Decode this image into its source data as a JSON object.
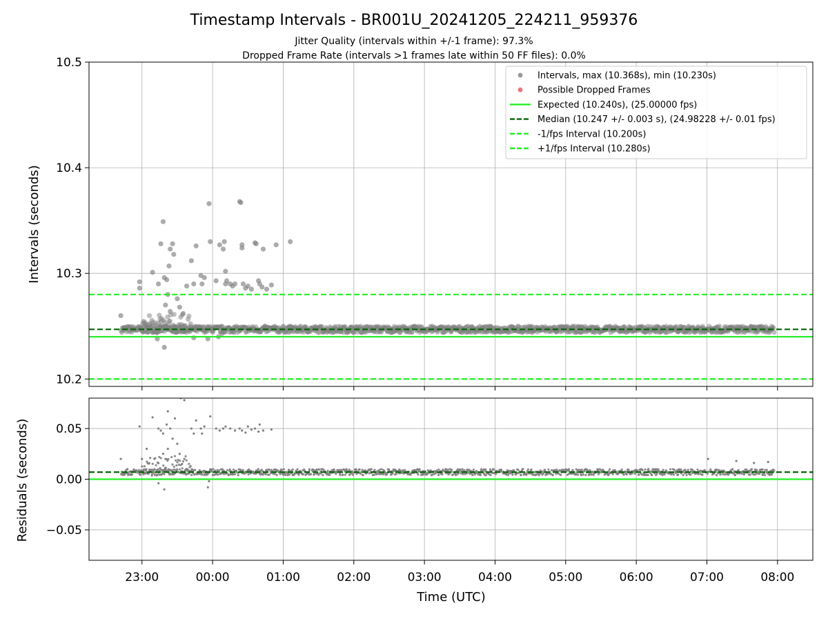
{
  "title": "Timestamp Intervals - BR001U_20241205_224211_959376",
  "subtitle_1": "Jitter Quality (intervals within +/-1 frame): 97.3%",
  "subtitle_2": "Dropped Frame Rate (intervals >1 frames late within 50 FF files): 0.0%",
  "colors": {
    "scatter": "#808080",
    "dropped": "#e8525a",
    "expected": "#22ee22",
    "median": "#006400",
    "interval": "#22ee22"
  },
  "chart_data": [
    {
      "type": "scatter",
      "panel": "intervals",
      "ylabel": "Intervals (seconds)",
      "ylim": [
        10.193,
        10.5
      ],
      "yticks": [
        10.2,
        10.3,
        10.4,
        10.5
      ],
      "ytick_labels": [
        "10.2",
        "10.3",
        "10.4",
        "10.5"
      ],
      "xlim": [
        "22:15",
        "08:30"
      ],
      "grid": true,
      "legend_position": "upper right",
      "legend": [
        {
          "label": "Intervals, max (10.368s), min (10.230s)",
          "kind": "marker",
          "color": "#808080"
        },
        {
          "label": "Possible Dropped Frames",
          "kind": "marker",
          "color": "#e8525a"
        },
        {
          "label": "Expected (10.240s), (25.00000 fps)",
          "kind": "solid",
          "color": "#22ee22"
        },
        {
          "label": "Median (10.247 +/- 0.003 s), (24.98228 +/- 0.01 fps)",
          "kind": "dashed",
          "color": "#006400"
        },
        {
          "label": "-1/fps Interval (10.200s)",
          "kind": "dashed",
          "color": "#22ee22"
        },
        {
          "label": "+1/fps Interval (10.280s)",
          "kind": "dashed",
          "color": "#22ee22"
        }
      ],
      "reference_lines": {
        "expected": 10.24,
        "median": 10.247,
        "minus_interval": 10.2,
        "plus_interval": 10.28
      },
      "baseline_band": {
        "x_start": "22:42",
        "x_end": "07:57",
        "center": 10.247,
        "spread": 0.003
      },
      "scatter_points": [
        {
          "x": "22:42",
          "y": 10.26
        },
        {
          "x": "22:58",
          "y": 10.292
        },
        {
          "x": "22:58",
          "y": 10.286
        },
        {
          "x": "23:09",
          "y": 10.301
        },
        {
          "x": "23:14",
          "y": 10.29
        },
        {
          "x": "23:16",
          "y": 10.328
        },
        {
          "x": "23:18",
          "y": 10.349
        },
        {
          "x": "23:19",
          "y": 10.296
        },
        {
          "x": "23:21",
          "y": 10.294
        },
        {
          "x": "23:23",
          "y": 10.307
        },
        {
          "x": "23:24",
          "y": 10.323
        },
        {
          "x": "23:26",
          "y": 10.328
        },
        {
          "x": "23:27",
          "y": 10.318
        },
        {
          "x": "23:20",
          "y": 10.27
        },
        {
          "x": "23:22",
          "y": 10.28
        },
        {
          "x": "23:24",
          "y": 10.264
        },
        {
          "x": "23:13",
          "y": 10.238
        },
        {
          "x": "23:19",
          "y": 10.23
        },
        {
          "x": "23:30",
          "y": 10.276
        },
        {
          "x": "23:32",
          "y": 10.268
        },
        {
          "x": "23:35",
          "y": 10.262
        },
        {
          "x": "23:38",
          "y": 10.288
        },
        {
          "x": "23:42",
          "y": 10.312
        },
        {
          "x": "23:44",
          "y": 10.29
        },
        {
          "x": "23:46",
          "y": 10.326
        },
        {
          "x": "23:50",
          "y": 10.298
        },
        {
          "x": "23:51",
          "y": 10.29
        },
        {
          "x": "23:53",
          "y": 10.296
        },
        {
          "x": "23:44",
          "y": 10.239
        },
        {
          "x": "23:56",
          "y": 10.238
        },
        {
          "x": "23:57",
          "y": 10.366
        },
        {
          "x": "23:58",
          "y": 10.33
        },
        {
          "x": "00:03",
          "y": 10.293
        },
        {
          "x": "00:06",
          "y": 10.327
        },
        {
          "x": "00:09",
          "y": 10.323
        },
        {
          "x": "00:10",
          "y": 10.33
        },
        {
          "x": "00:11",
          "y": 10.302
        },
        {
          "x": "00:11",
          "y": 10.29
        },
        {
          "x": "00:12",
          "y": 10.293
        },
        {
          "x": "00:15",
          "y": 10.29
        },
        {
          "x": "00:17",
          "y": 10.288
        },
        {
          "x": "00:19",
          "y": 10.29
        },
        {
          "x": "00:23",
          "y": 10.368
        },
        {
          "x": "00:24",
          "y": 10.367
        },
        {
          "x": "00:25",
          "y": 10.327
        },
        {
          "x": "00:25",
          "y": 10.324
        },
        {
          "x": "00:26",
          "y": 10.29
        },
        {
          "x": "00:28",
          "y": 10.286
        },
        {
          "x": "00:30",
          "y": 10.288
        },
        {
          "x": "00:33",
          "y": 10.285
        },
        {
          "x": "00:36",
          "y": 10.329
        },
        {
          "x": "00:37",
          "y": 10.328
        },
        {
          "x": "00:39",
          "y": 10.293
        },
        {
          "x": "00:40",
          "y": 10.29
        },
        {
          "x": "00:42",
          "y": 10.287
        },
        {
          "x": "00:43",
          "y": 10.323
        },
        {
          "x": "00:46",
          "y": 10.285
        },
        {
          "x": "00:50",
          "y": 10.289
        },
        {
          "x": "00:54",
          "y": 10.327
        },
        {
          "x": "01:06",
          "y": 10.33
        },
        {
          "x": "00:08",
          "y": 10.243
        },
        {
          "x": "00:05",
          "y": 10.24
        }
      ]
    },
    {
      "type": "scatter",
      "panel": "residuals",
      "ylabel": "Residuals (seconds)",
      "xlabel": "Time (UTC)",
      "ylim": [
        -0.08,
        0.08
      ],
      "yticks": [
        -0.05,
        0.0,
        0.05
      ],
      "ytick_labels": [
        "−0.05",
        "0.00",
        "0.05"
      ],
      "xlim": [
        "22:15",
        "08:30"
      ],
      "xticks": [
        "23:00",
        "00:00",
        "01:00",
        "02:00",
        "03:00",
        "04:00",
        "05:00",
        "06:00",
        "07:00",
        "08:00"
      ],
      "grid": true,
      "reference_lines": {
        "zero": 0.0,
        "median_offset": 0.007
      },
      "baseline_band": {
        "x_start": "22:42",
        "x_end": "07:57",
        "center": 0.007,
        "spread": 0.003
      },
      "scatter_points": [
        {
          "x": "22:42",
          "y": 0.02
        },
        {
          "x": "22:58",
          "y": 0.052
        },
        {
          "x": "23:00",
          "y": 0.02
        },
        {
          "x": "23:04",
          "y": 0.03
        },
        {
          "x": "23:09",
          "y": 0.061
        },
        {
          "x": "23:14",
          "y": 0.05
        },
        {
          "x": "23:16",
          "y": 0.048
        },
        {
          "x": "23:18",
          "y": 0.045
        },
        {
          "x": "23:21",
          "y": 0.054
        },
        {
          "x": "23:22",
          "y": 0.067
        },
        {
          "x": "23:24",
          "y": 0.05
        },
        {
          "x": "23:26",
          "y": 0.04
        },
        {
          "x": "23:18",
          "y": 0.025
        },
        {
          "x": "23:20",
          "y": 0.02
        },
        {
          "x": "23:22",
          "y": 0.03
        },
        {
          "x": "23:19",
          "y": -0.01
        },
        {
          "x": "23:14",
          "y": -0.004
        },
        {
          "x": "23:28",
          "y": 0.06
        },
        {
          "x": "23:30",
          "y": 0.035
        },
        {
          "x": "23:32",
          "y": 0.025
        },
        {
          "x": "23:34",
          "y": 0.015
        },
        {
          "x": "23:36",
          "y": 0.02
        },
        {
          "x": "23:38",
          "y": 0.01
        },
        {
          "x": "23:33",
          "y": 0.08
        },
        {
          "x": "23:36",
          "y": 0.078
        },
        {
          "x": "23:42",
          "y": 0.05
        },
        {
          "x": "23:44",
          "y": 0.045
        },
        {
          "x": "23:46",
          "y": 0.058
        },
        {
          "x": "23:50",
          "y": 0.05
        },
        {
          "x": "23:51",
          "y": 0.045
        },
        {
          "x": "23:53",
          "y": 0.052
        },
        {
          "x": "23:56",
          "y": -0.008
        },
        {
          "x": "23:57",
          "y": -0.002
        },
        {
          "x": "23:58",
          "y": 0.062
        },
        {
          "x": "00:03",
          "y": 0.05
        },
        {
          "x": "00:06",
          "y": 0.048
        },
        {
          "x": "00:09",
          "y": 0.05
        },
        {
          "x": "00:11",
          "y": 0.052
        },
        {
          "x": "00:15",
          "y": 0.05
        },
        {
          "x": "00:19",
          "y": 0.048
        },
        {
          "x": "00:23",
          "y": 0.05
        },
        {
          "x": "00:25",
          "y": 0.048
        },
        {
          "x": "00:28",
          "y": 0.046
        },
        {
          "x": "00:30",
          "y": 0.052
        },
        {
          "x": "00:33",
          "y": 0.049
        },
        {
          "x": "00:36",
          "y": 0.05
        },
        {
          "x": "00:39",
          "y": 0.047
        },
        {
          "x": "00:40",
          "y": 0.054
        },
        {
          "x": "00:43",
          "y": 0.048
        },
        {
          "x": "00:50",
          "y": 0.049
        },
        {
          "x": "07:01",
          "y": 0.02
        },
        {
          "x": "07:25",
          "y": 0.018
        },
        {
          "x": "07:40",
          "y": 0.016
        },
        {
          "x": "07:52",
          "y": 0.017
        }
      ]
    }
  ]
}
